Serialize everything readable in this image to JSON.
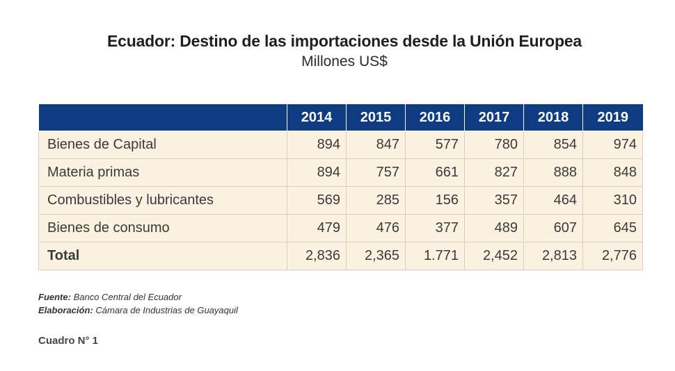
{
  "title": "Ecuador: Destino de las importaciones desde la Unión Europea",
  "subtitle": "Millones US$",
  "table": {
    "years": [
      "2014",
      "2015",
      "2016",
      "2017",
      "2018",
      "2019"
    ],
    "rows": [
      {
        "label": "Bienes de Capital",
        "values": [
          "894",
          "847",
          "577",
          "780",
          "854",
          "974"
        ]
      },
      {
        "label": "Materia primas",
        "values": [
          "894",
          "757",
          "661",
          "827",
          "888",
          "848"
        ]
      },
      {
        "label": "Combustibles y lubricantes",
        "values": [
          "569",
          "285",
          "156",
          "357",
          "464",
          "310"
        ]
      },
      {
        "label": "Bienes de consumo",
        "values": [
          "479",
          "476",
          "377",
          "489",
          "607",
          "645"
        ]
      },
      {
        "label": "Total",
        "values": [
          "2,836",
          "2,365",
          "1.771",
          "2,452",
          "2,813",
          "2,776"
        ]
      }
    ]
  },
  "notes": {
    "source_label": "Fuente:",
    "source_text": "Banco Central del Ecuador",
    "elaboration_label": "Elaboración:",
    "elaboration_text": "Cámara de Industrias de Guayaquil"
  },
  "caption": "Cuadro N° 1",
  "colors": {
    "header_bg": "#0f3b82",
    "row_bg": "#fcf2e2"
  }
}
